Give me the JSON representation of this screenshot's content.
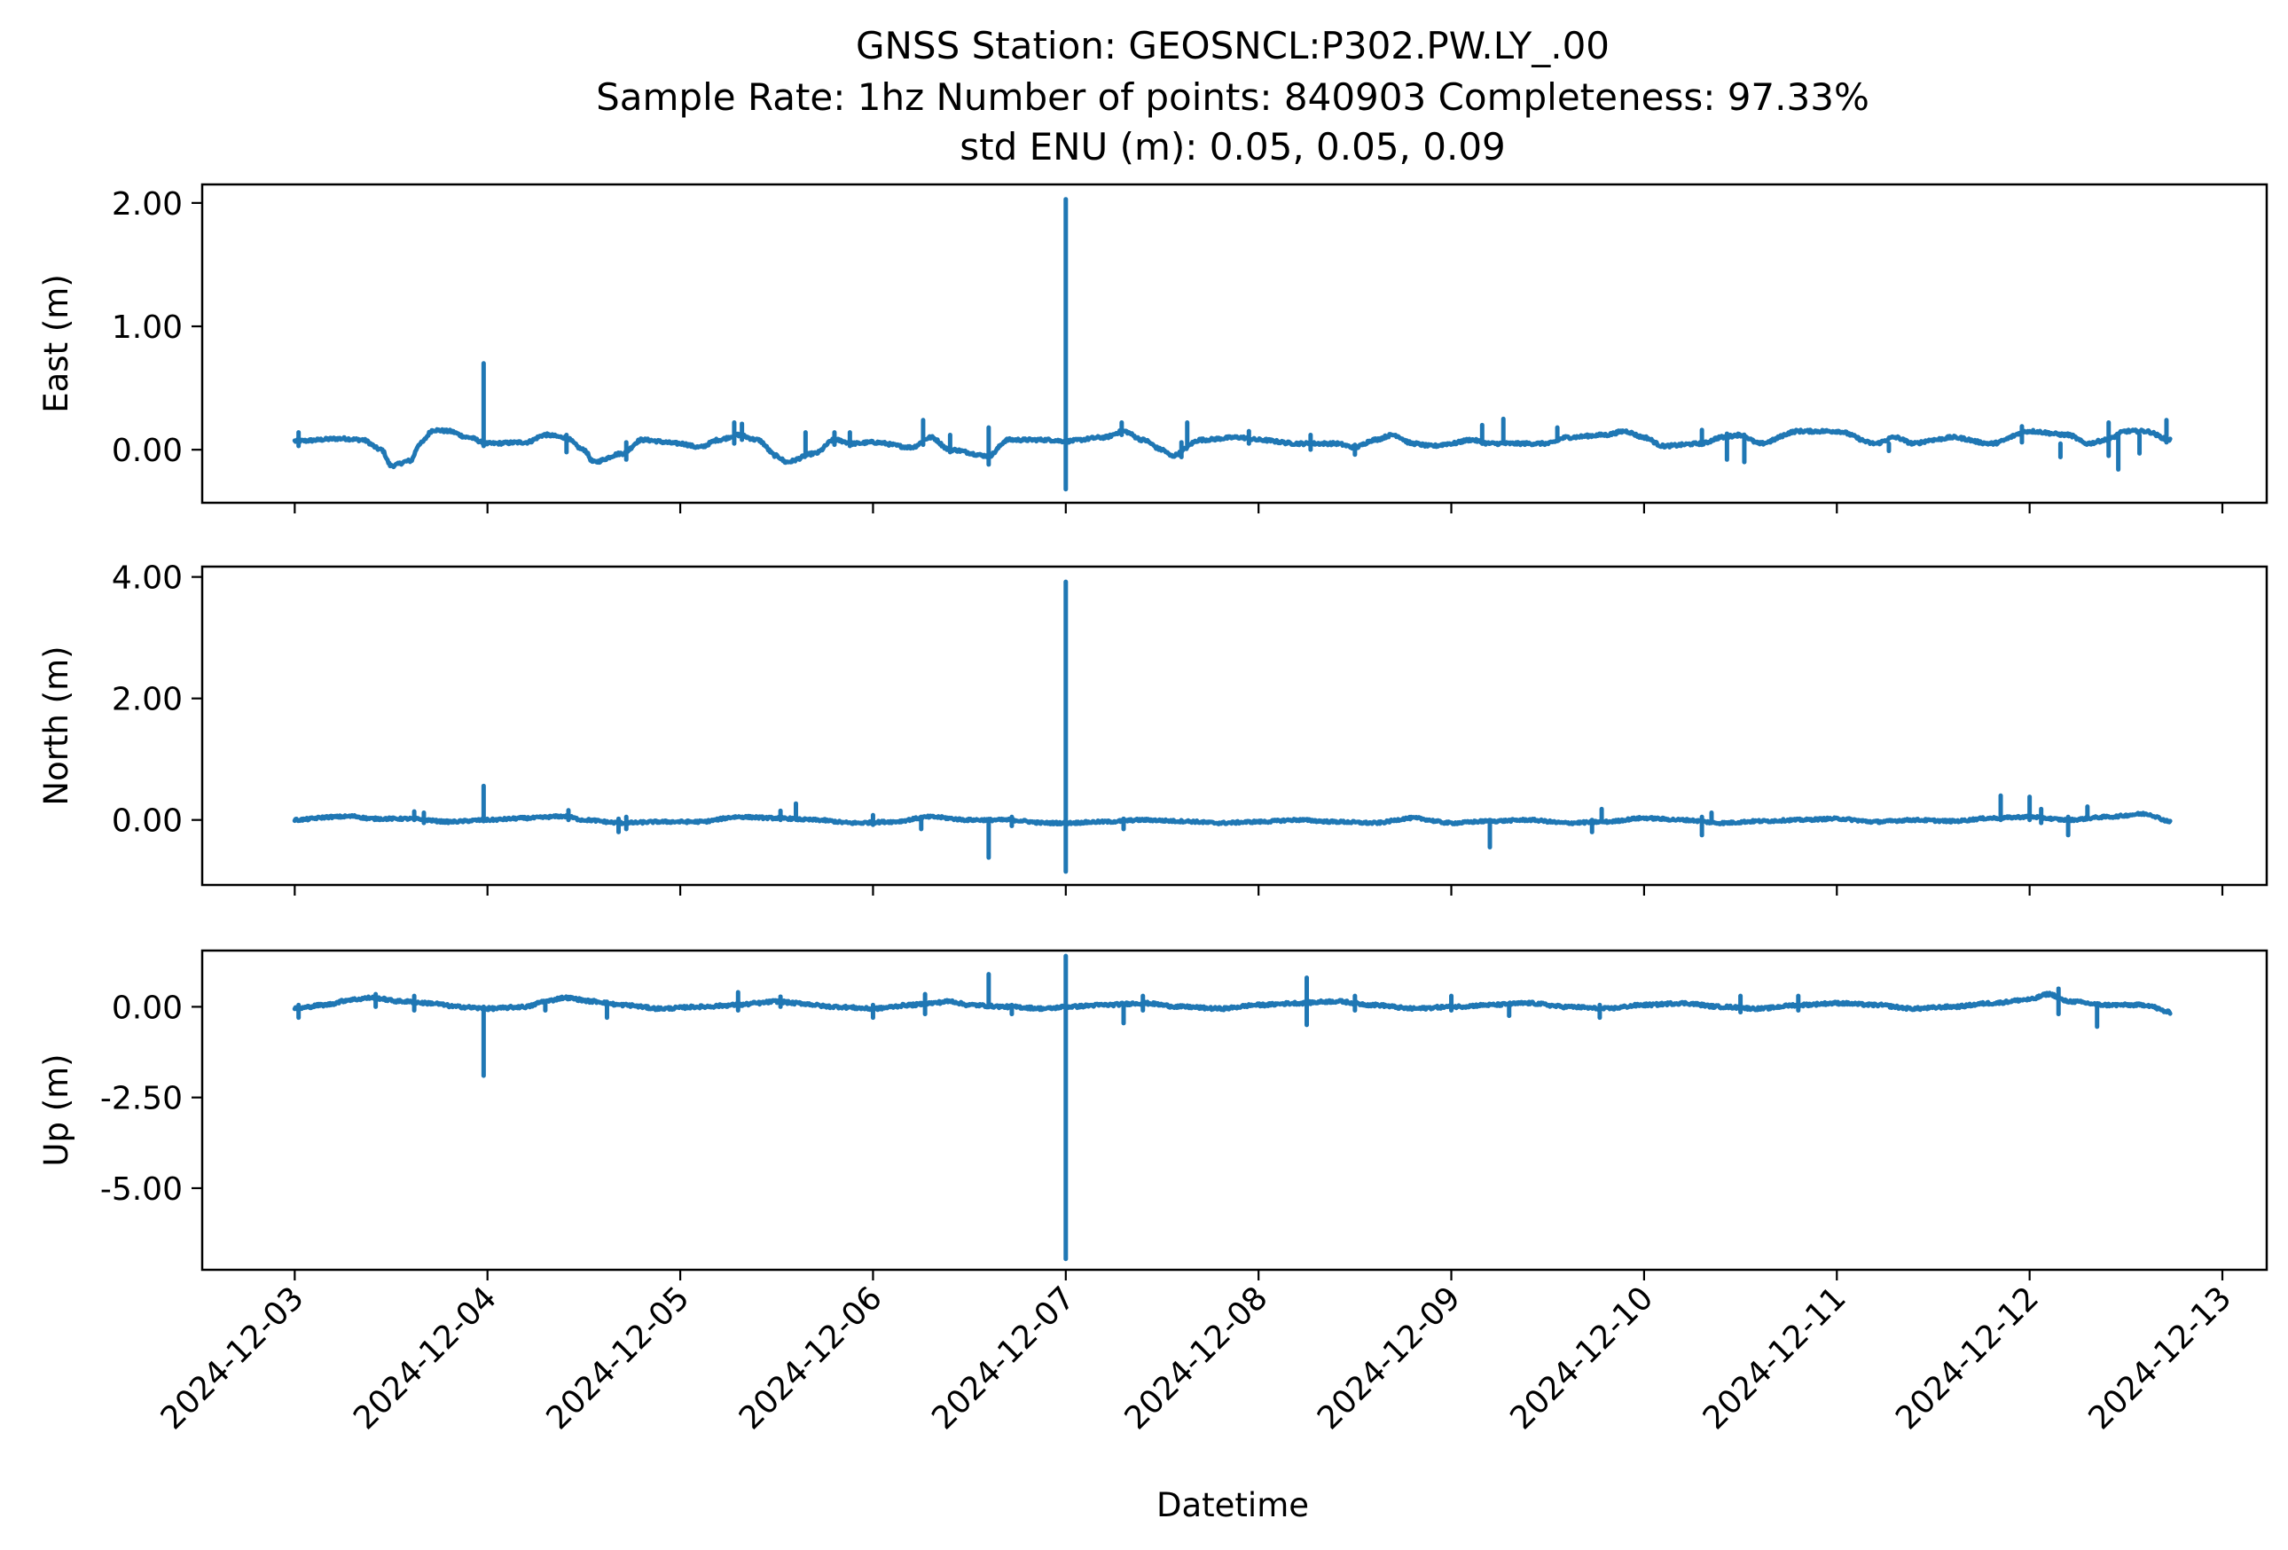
{
  "chart_data": {
    "type": "line",
    "title_lines": [
      "GNSS Station: GEOSNCL:P302.PW.LY_.00",
      "Sample Rate: 1hz   Number of points: 840903    Completeness:  97.33%",
      "std ENU (m):  0.05, 0.05, 0.09"
    ],
    "xlabel": "Datetime",
    "line_color": "#1f77b4",
    "x_ticks": [
      "2024-12-03",
      "2024-12-04",
      "2024-12-05",
      "2024-12-06",
      "2024-12-07",
      "2024-12-08",
      "2024-12-09",
      "2024-12-10",
      "2024-12-11",
      "2024-12-12",
      "2024-12-13"
    ],
    "xlim": [
      -0.48,
      10.23
    ],
    "x_data_range": [
      0.0,
      9.73
    ],
    "panels": [
      {
        "ylabel": "East (m)",
        "ylim": [
          -0.43,
          2.15
        ],
        "y_ticks": [
          0.0,
          1.0,
          2.0
        ],
        "y_tick_labels": [
          "0.00",
          "1.00",
          "2.00"
        ],
        "noise": 0.012,
        "trend": [
          [
            0.0,
            0.07
          ],
          [
            0.25,
            0.09
          ],
          [
            0.35,
            0.08
          ],
          [
            0.45,
            0.0
          ],
          [
            0.5,
            -0.13
          ],
          [
            0.6,
            -0.09
          ],
          [
            0.65,
            0.05
          ],
          [
            0.72,
            0.16
          ],
          [
            0.8,
            0.15
          ],
          [
            0.9,
            0.1
          ],
          [
            1.0,
            0.05
          ],
          [
            1.2,
            0.06
          ],
          [
            1.3,
            0.12
          ],
          [
            1.4,
            0.1
          ],
          [
            1.5,
            0.0
          ],
          [
            1.55,
            -0.1
          ],
          [
            1.7,
            -0.03
          ],
          [
            1.8,
            0.08
          ],
          [
            2.0,
            0.05
          ],
          [
            2.1,
            0.02
          ],
          [
            2.2,
            0.08
          ],
          [
            2.3,
            0.12
          ],
          [
            2.4,
            0.08
          ],
          [
            2.5,
            -0.05
          ],
          [
            2.55,
            -0.1
          ],
          [
            2.7,
            -0.03
          ],
          [
            2.8,
            0.08
          ],
          [
            2.9,
            0.05
          ],
          [
            3.0,
            0.06
          ],
          [
            3.2,
            0.02
          ],
          [
            3.3,
            0.1
          ],
          [
            3.4,
            0.0
          ],
          [
            3.6,
            -0.05
          ],
          [
            3.7,
            0.08
          ],
          [
            3.9,
            0.08
          ],
          [
            4.0,
            0.07
          ],
          [
            4.2,
            0.1
          ],
          [
            4.3,
            0.15
          ],
          [
            4.4,
            0.08
          ],
          [
            4.5,
            0.0
          ],
          [
            4.55,
            -0.05
          ],
          [
            4.7,
            0.08
          ],
          [
            4.9,
            0.1
          ],
          [
            5.0,
            0.08
          ],
          [
            5.2,
            0.05
          ],
          [
            5.4,
            0.05
          ],
          [
            5.5,
            0.02
          ],
          [
            5.6,
            0.08
          ],
          [
            5.7,
            0.12
          ],
          [
            5.8,
            0.05
          ],
          [
            5.9,
            0.03
          ],
          [
            6.0,
            0.05
          ],
          [
            6.1,
            0.08
          ],
          [
            6.2,
            0.05
          ],
          [
            6.4,
            0.05
          ],
          [
            6.5,
            0.05
          ],
          [
            6.6,
            0.1
          ],
          [
            6.8,
            0.12
          ],
          [
            6.9,
            0.15
          ],
          [
            7.0,
            0.1
          ],
          [
            7.1,
            0.03
          ],
          [
            7.3,
            0.05
          ],
          [
            7.4,
            0.1
          ],
          [
            7.5,
            0.12
          ],
          [
            7.6,
            0.05
          ],
          [
            7.8,
            0.15
          ],
          [
            8.0,
            0.15
          ],
          [
            8.2,
            0.05
          ],
          [
            8.3,
            0.1
          ],
          [
            8.4,
            0.05
          ],
          [
            8.5,
            0.08
          ],
          [
            8.6,
            0.1
          ],
          [
            8.8,
            0.05
          ],
          [
            9.0,
            0.15
          ],
          [
            9.2,
            0.12
          ],
          [
            9.3,
            0.05
          ],
          [
            9.4,
            0.08
          ],
          [
            9.5,
            0.15
          ],
          [
            9.6,
            0.15
          ],
          [
            9.73,
            0.08
          ]
        ],
        "spikes": [
          [
            0.02,
            0.03,
            0.14
          ],
          [
            0.98,
            0.03,
            0.7
          ],
          [
            1.41,
            -0.02,
            0.12
          ],
          [
            1.72,
            -0.08,
            0.06
          ],
          [
            2.28,
            0.05,
            0.22
          ],
          [
            2.32,
            0.08,
            0.21
          ],
          [
            2.65,
            -0.05,
            0.14
          ],
          [
            2.8,
            0.04,
            0.14
          ],
          [
            2.88,
            0.03,
            0.14
          ],
          [
            3.26,
            0.04,
            0.24
          ],
          [
            3.4,
            -0.02,
            0.12
          ],
          [
            3.6,
            -0.12,
            0.18
          ],
          [
            4.0,
            -0.32,
            2.03
          ],
          [
            4.29,
            0.12,
            0.22
          ],
          [
            4.6,
            -0.06,
            0.06
          ],
          [
            4.63,
            0.04,
            0.22
          ],
          [
            4.95,
            0.05,
            0.15
          ],
          [
            5.27,
            0.0,
            0.12
          ],
          [
            5.5,
            -0.04,
            0.04
          ],
          [
            6.16,
            0.07,
            0.2
          ],
          [
            6.27,
            0.06,
            0.25
          ],
          [
            6.55,
            0.07,
            0.18
          ],
          [
            7.3,
            0.04,
            0.16
          ],
          [
            7.43,
            -0.08,
            0.13
          ],
          [
            7.52,
            -0.1,
            0.1
          ],
          [
            8.27,
            -0.01,
            0.05
          ],
          [
            8.96,
            0.06,
            0.19
          ],
          [
            9.16,
            -0.06,
            0.05
          ],
          [
            9.41,
            -0.05,
            0.22
          ],
          [
            9.46,
            -0.16,
            0.12
          ],
          [
            9.57,
            -0.03,
            0.12
          ],
          [
            9.71,
            0.06,
            0.24
          ]
        ]
      },
      {
        "ylabel": "North (m)",
        "ylim": [
          -1.07,
          4.17
        ],
        "y_ticks": [
          0.0,
          2.0,
          4.0
        ],
        "y_tick_labels": [
          "0.00",
          "2.00",
          "4.00"
        ],
        "noise": 0.02,
        "trend": [
          [
            0.0,
            0.0
          ],
          [
            0.2,
            0.05
          ],
          [
            0.3,
            0.06
          ],
          [
            0.4,
            0.02
          ],
          [
            0.6,
            0.02
          ],
          [
            0.8,
            -0.03
          ],
          [
            1.0,
            0.0
          ],
          [
            1.2,
            0.03
          ],
          [
            1.4,
            0.06
          ],
          [
            1.5,
            0.0
          ],
          [
            1.7,
            -0.05
          ],
          [
            1.9,
            -0.03
          ],
          [
            2.1,
            -0.03
          ],
          [
            2.3,
            0.05
          ],
          [
            2.5,
            0.03
          ],
          [
            2.7,
            0.0
          ],
          [
            2.9,
            -0.05
          ],
          [
            3.1,
            -0.03
          ],
          [
            3.3,
            0.05
          ],
          [
            3.5,
            0.0
          ],
          [
            3.7,
            0.0
          ],
          [
            3.9,
            -0.05
          ],
          [
            4.0,
            -0.05
          ],
          [
            4.2,
            -0.03
          ],
          [
            4.4,
            0.0
          ],
          [
            4.6,
            -0.02
          ],
          [
            4.8,
            -0.05
          ],
          [
            5.0,
            -0.03
          ],
          [
            5.2,
            0.0
          ],
          [
            5.4,
            -0.03
          ],
          [
            5.6,
            -0.05
          ],
          [
            5.8,
            0.03
          ],
          [
            6.0,
            -0.05
          ],
          [
            6.2,
            -0.02
          ],
          [
            6.4,
            0.0
          ],
          [
            6.6,
            -0.05
          ],
          [
            6.8,
            -0.03
          ],
          [
            7.0,
            0.03
          ],
          [
            7.2,
            0.0
          ],
          [
            7.4,
            -0.05
          ],
          [
            7.6,
            -0.02
          ],
          [
            7.8,
            0.0
          ],
          [
            8.0,
            0.02
          ],
          [
            8.2,
            -0.03
          ],
          [
            8.4,
            0.0
          ],
          [
            8.6,
            -0.02
          ],
          [
            8.8,
            0.03
          ],
          [
            9.0,
            0.05
          ],
          [
            9.2,
            0.0
          ],
          [
            9.4,
            0.05
          ],
          [
            9.6,
            0.1
          ],
          [
            9.73,
            -0.02
          ]
        ],
        "spikes": [
          [
            0.62,
            0.0,
            0.14
          ],
          [
            0.67,
            -0.05,
            0.12
          ],
          [
            0.98,
            -0.02,
            0.56
          ],
          [
            1.42,
            0.0,
            0.16
          ],
          [
            1.68,
            -0.2,
            0.02
          ],
          [
            1.72,
            -0.15,
            0.05
          ],
          [
            2.52,
            0.0,
            0.15
          ],
          [
            2.6,
            0.03,
            0.27
          ],
          [
            3.0,
            -0.08,
            0.08
          ],
          [
            3.25,
            -0.15,
            0.05
          ],
          [
            3.6,
            -0.62,
            0.0
          ],
          [
            3.72,
            -0.1,
            0.05
          ],
          [
            4.0,
            -0.85,
            3.92
          ],
          [
            4.3,
            -0.15,
            0.02
          ],
          [
            6.2,
            -0.45,
            0.0
          ],
          [
            6.73,
            -0.2,
            0.0
          ],
          [
            6.78,
            0.0,
            0.18
          ],
          [
            7.3,
            -0.25,
            0.05
          ],
          [
            7.35,
            -0.05,
            0.12
          ],
          [
            8.85,
            0.0,
            0.4
          ],
          [
            9.0,
            0.0,
            0.38
          ],
          [
            9.06,
            -0.05,
            0.18
          ],
          [
            9.2,
            -0.25,
            0.05
          ],
          [
            9.3,
            0.05,
            0.22
          ]
        ]
      },
      {
        "ylabel": "Up (m)",
        "ylim": [
          -7.25,
          1.55
        ],
        "y_ticks": [
          -5.0,
          -2.5,
          0.0
        ],
        "y_tick_labels": [
          "-5.00",
          "-2.50",
          "0.00"
        ],
        "noise": 0.04,
        "trend": [
          [
            0.0,
            -0.05
          ],
          [
            0.15,
            0.05
          ],
          [
            0.3,
            0.2
          ],
          [
            0.4,
            0.25
          ],
          [
            0.55,
            0.15
          ],
          [
            0.7,
            0.1
          ],
          [
            0.85,
            0.0
          ],
          [
            1.0,
            -0.05
          ],
          [
            1.2,
            0.0
          ],
          [
            1.3,
            0.15
          ],
          [
            1.4,
            0.25
          ],
          [
            1.55,
            0.15
          ],
          [
            1.7,
            0.05
          ],
          [
            1.9,
            -0.05
          ],
          [
            2.1,
            0.0
          ],
          [
            2.3,
            0.05
          ],
          [
            2.4,
            0.1
          ],
          [
            2.5,
            0.15
          ],
          [
            2.6,
            0.1
          ],
          [
            2.8,
            0.0
          ],
          [
            3.0,
            -0.05
          ],
          [
            3.2,
            0.05
          ],
          [
            3.3,
            0.1
          ],
          [
            3.4,
            0.15
          ],
          [
            3.5,
            0.05
          ],
          [
            3.7,
            0.0
          ],
          [
            3.9,
            -0.05
          ],
          [
            4.0,
            0.0
          ],
          [
            4.2,
            0.05
          ],
          [
            4.4,
            0.1
          ],
          [
            4.6,
            0.0
          ],
          [
            4.8,
            -0.05
          ],
          [
            5.0,
            0.05
          ],
          [
            5.2,
            0.1
          ],
          [
            5.4,
            0.15
          ],
          [
            5.6,
            0.05
          ],
          [
            5.8,
            -0.05
          ],
          [
            6.0,
            0.0
          ],
          [
            6.2,
            0.05
          ],
          [
            6.4,
            0.1
          ],
          [
            6.6,
            0.0
          ],
          [
            6.8,
            -0.05
          ],
          [
            7.0,
            0.05
          ],
          [
            7.2,
            0.1
          ],
          [
            7.4,
            0.0
          ],
          [
            7.6,
            -0.05
          ],
          [
            7.8,
            0.05
          ],
          [
            8.0,
            0.1
          ],
          [
            8.2,
            0.05
          ],
          [
            8.4,
            -0.05
          ],
          [
            8.6,
            0.0
          ],
          [
            8.8,
            0.1
          ],
          [
            9.0,
            0.2
          ],
          [
            9.1,
            0.35
          ],
          [
            9.2,
            0.15
          ],
          [
            9.4,
            0.05
          ],
          [
            9.6,
            0.05
          ],
          [
            9.73,
            -0.15
          ]
        ],
        "spikes": [
          [
            0.02,
            -0.3,
            0.05
          ],
          [
            0.42,
            0.0,
            0.35
          ],
          [
            0.62,
            -0.1,
            0.3
          ],
          [
            0.98,
            -1.9,
            0.0
          ],
          [
            1.3,
            -0.1,
            0.15
          ],
          [
            1.62,
            -0.3,
            0.05
          ],
          [
            2.3,
            -0.1,
            0.4
          ],
          [
            2.52,
            0.0,
            0.28
          ],
          [
            3.0,
            -0.3,
            0.05
          ],
          [
            3.27,
            -0.2,
            0.35
          ],
          [
            3.6,
            0.0,
            0.9
          ],
          [
            3.72,
            -0.2,
            0.05
          ],
          [
            4.0,
            -6.95,
            1.4
          ],
          [
            4.3,
            -0.45,
            0.05
          ],
          [
            4.4,
            -0.1,
            0.3
          ],
          [
            5.25,
            -0.5,
            0.8
          ],
          [
            5.5,
            -0.1,
            0.3
          ],
          [
            6.0,
            -0.1,
            0.3
          ],
          [
            6.3,
            -0.25,
            0.1
          ],
          [
            6.77,
            -0.3,
            0.05
          ],
          [
            7.5,
            -0.15,
            0.3
          ],
          [
            7.8,
            -0.1,
            0.3
          ],
          [
            9.15,
            -0.2,
            0.5
          ],
          [
            9.35,
            -0.55,
            0.05
          ]
        ]
      }
    ]
  }
}
